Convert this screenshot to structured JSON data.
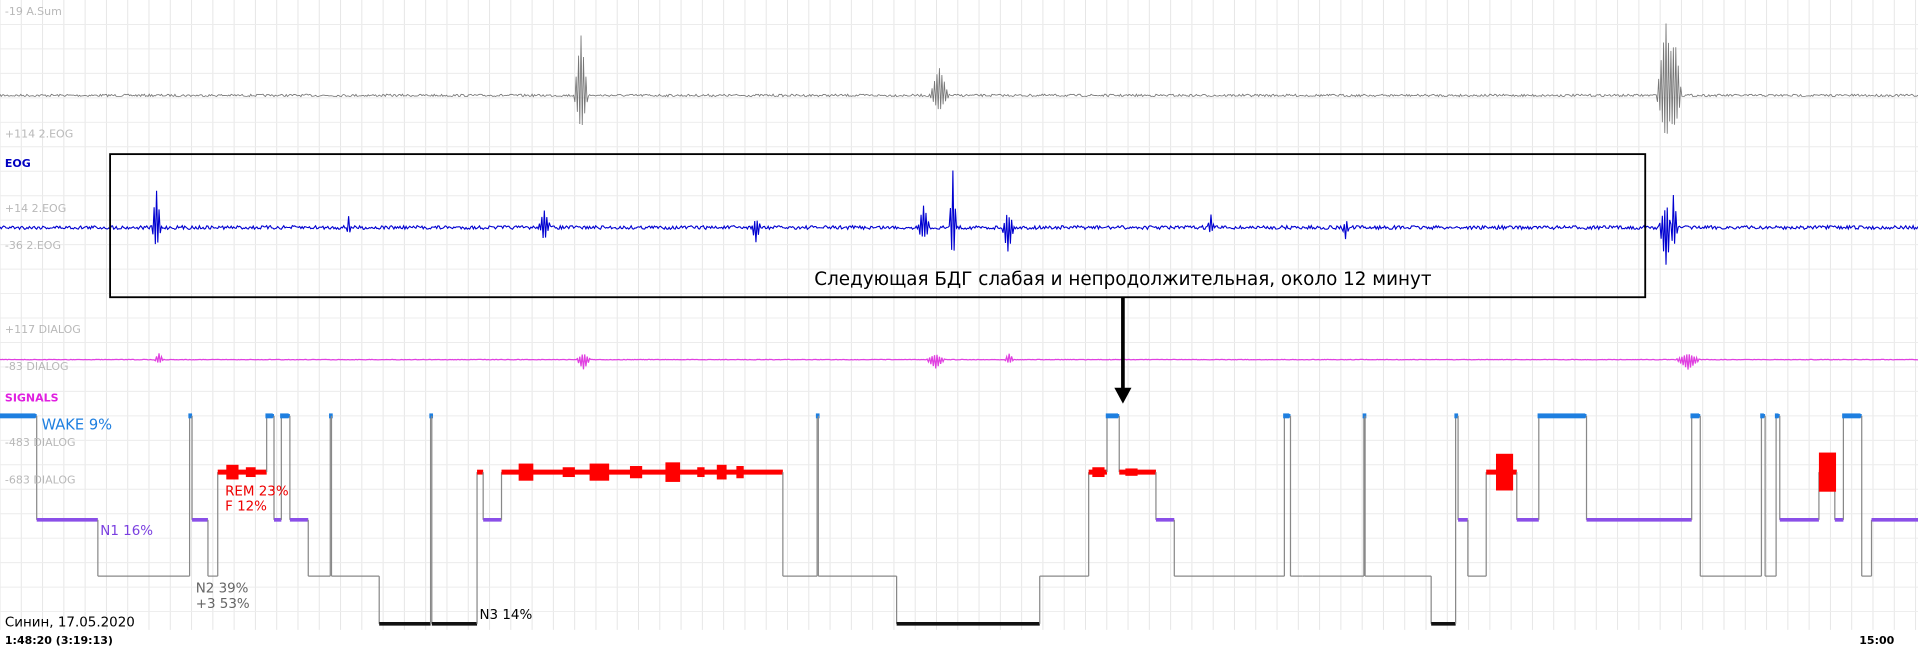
{
  "channels": {
    "asum_top": "-19 A.Sum",
    "eog_top": "+114 2.EOG",
    "eog_name": "EOG",
    "eog_mid": "+14 2.EOG",
    "eog_low": "-36 2.EOG",
    "dialog_top": "+117 DIALOG",
    "dialog_low": "-83 DIALOG",
    "signals_name": "SIGNALS",
    "dialog_483": "-483 DIALOG",
    "dialog_683": "-683 DIALOG"
  },
  "annotation": "Следующая БДГ слабая и непродолжительная, около 12 минут",
  "hypnogram": {
    "wake": "WAKE 9%",
    "rem": "REM 23%",
    "f": "F 12%",
    "n1": "N1 16%",
    "n2": "N2 39%",
    "n2_extra": "+3 53%",
    "n3": "N3 14%"
  },
  "footer": {
    "patient": "Синин, 17.05.2020",
    "time": "1:48:20 (3:19:13)",
    "end_time": "15:00"
  }
}
